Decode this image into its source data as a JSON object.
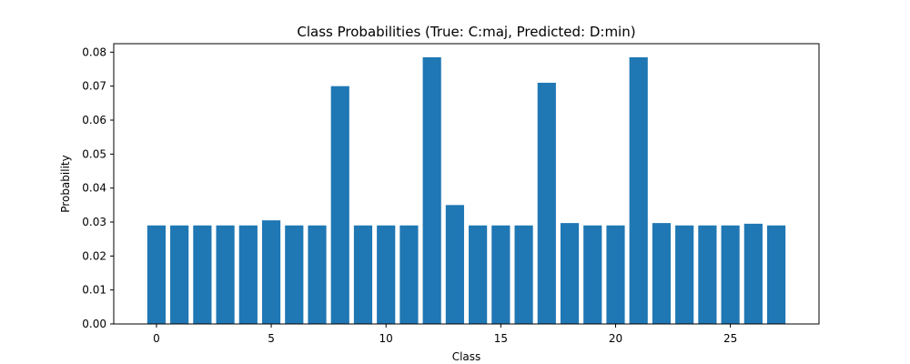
{
  "chart_data": {
    "type": "bar",
    "title": "Class Probabilities (True: C:maj, Predicted: D:min)",
    "xlabel": "Class",
    "ylabel": "Probability",
    "categories": [
      0,
      1,
      2,
      3,
      4,
      5,
      6,
      7,
      8,
      9,
      10,
      11,
      12,
      13,
      14,
      15,
      16,
      17,
      18,
      19,
      20,
      21,
      22,
      23,
      24,
      25,
      26,
      27
    ],
    "values": [
      0.029,
      0.029,
      0.029,
      0.029,
      0.029,
      0.0305,
      0.029,
      0.029,
      0.07,
      0.029,
      0.029,
      0.029,
      0.0785,
      0.035,
      0.029,
      0.029,
      0.029,
      0.071,
      0.0297,
      0.029,
      0.029,
      0.0785,
      0.0297,
      0.029,
      0.029,
      0.029,
      0.0295,
      0.029
    ],
    "xlim": [
      -1.86,
      28.86
    ],
    "ylim": [
      0,
      0.0825
    ],
    "xticks": [
      0,
      5,
      10,
      15,
      20,
      25
    ],
    "xtick_labels": [
      "0",
      "5",
      "10",
      "15",
      "20",
      "25"
    ],
    "yticks": [
      0,
      0.01,
      0.02,
      0.03,
      0.04,
      0.05,
      0.06,
      0.07,
      0.08
    ],
    "ytick_labels": [
      "0.00",
      "0.01",
      "0.02",
      "0.03",
      "0.04",
      "0.05",
      "0.06",
      "0.07",
      "0.08"
    ],
    "bar_color": "#1f77b4",
    "grid": false,
    "legend": "none"
  }
}
